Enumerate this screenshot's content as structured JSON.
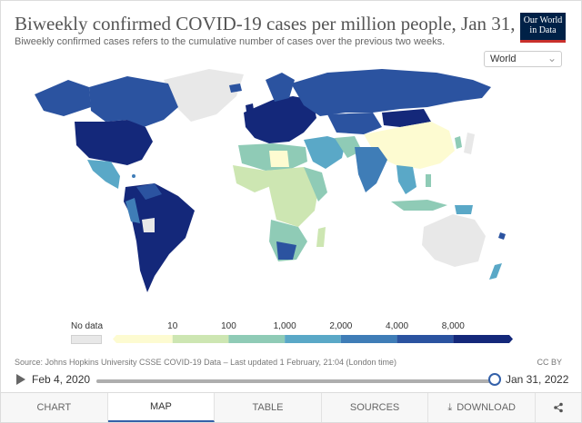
{
  "header": {
    "title": "Biweekly confirmed COVID-19 cases per million people, Jan 31, 2022",
    "subtitle": "Biweekly confirmed cases refers to the cumulative number of cases over the previous two weeks.",
    "logo_line1": "Our World",
    "logo_line2": "in Data",
    "region": "World"
  },
  "legend": {
    "nodata_label": "No data",
    "ticks": [
      "10",
      "100",
      "1,000",
      "2,000",
      "4,000",
      "8,000"
    ],
    "colors": [
      "#fdfbd1",
      "#cde6b2",
      "#8fcbb6",
      "#5aa8c7",
      "#3f7db7",
      "#2b53a0",
      "#14287a"
    ]
  },
  "footer": {
    "source": "Source: Johns Hopkins University CSSE COVID-19 Data – Last updated 1 February, 21:04 (London time)",
    "license": "CC BY"
  },
  "timeline": {
    "start_label": "Feb 4, 2020",
    "end_label": "Jan 31, 2022",
    "position": 1.0
  },
  "tabs": [
    {
      "label": "CHART",
      "active": false
    },
    {
      "label": "MAP",
      "active": true
    },
    {
      "label": "TABLE",
      "active": false
    },
    {
      "label": "SOURCES",
      "active": false
    },
    {
      "label": "DOWNLOAD",
      "active": false
    }
  ],
  "icons": {
    "play": "play-icon",
    "download": "download-icon",
    "share": "share-icon",
    "dropdown": "chevron-down-icon"
  }
}
